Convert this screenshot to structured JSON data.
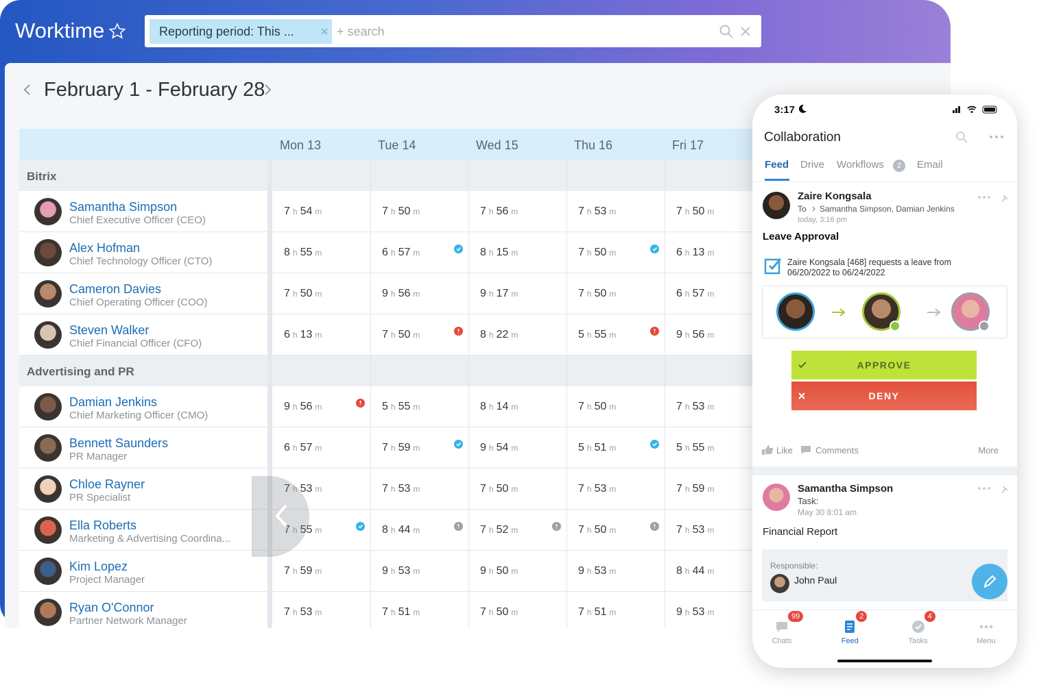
{
  "header": {
    "app_title": "Worktime",
    "filter_chip": "Reporting period: This ...",
    "search_placeholder": "+ search"
  },
  "period": "February 1 - February 28",
  "table": {
    "units": {
      "hours": "h",
      "minutes": "m"
    },
    "days": [
      "Mon 13",
      "Tue 14",
      "Wed 15",
      "Thu 16",
      "Fri 17"
    ],
    "groups": [
      {
        "name": "Bitrix",
        "employees": [
          {
            "name": "Samantha Simpson",
            "position": "Chief Executive Officer (CEO)",
            "times": [
              {
                "h": 7,
                "m": 54
              },
              {
                "h": 7,
                "m": 50
              },
              {
                "h": 7,
                "m": 56
              },
              {
                "h": 7,
                "m": 53
              },
              {
                "h": 7,
                "m": 50
              }
            ]
          },
          {
            "name": "Alex Hofman",
            "position": "Chief Technology Officer (CTO)",
            "times": [
              {
                "h": 8,
                "m": 55
              },
              {
                "h": 6,
                "m": 57,
                "status": "approved"
              },
              {
                "h": 8,
                "m": 15
              },
              {
                "h": 7,
                "m": 50,
                "status": "approved"
              },
              {
                "h": 6,
                "m": 13
              }
            ]
          },
          {
            "name": "Cameron Davies",
            "position": "Chief Operating Officer (COO)",
            "times": [
              {
                "h": 7,
                "m": 50
              },
              {
                "h": 9,
                "m": 56
              },
              {
                "h": 9,
                "m": 17
              },
              {
                "h": 7,
                "m": 50
              },
              {
                "h": 6,
                "m": 57
              }
            ]
          },
          {
            "name": "Steven Walker",
            "position": "Chief Financial Officer (CFO)",
            "times": [
              {
                "h": 6,
                "m": 13
              },
              {
                "h": 7,
                "m": 50,
                "status": "alert"
              },
              {
                "h": 8,
                "m": 22
              },
              {
                "h": 5,
                "m": 55,
                "status": "alert"
              },
              {
                "h": 9,
                "m": 56
              }
            ]
          }
        ]
      },
      {
        "name": "Advertising and PR",
        "employees": [
          {
            "name": "Damian Jenkins",
            "position": "Chief Marketing Officer (CMO)",
            "times": [
              {
                "h": 9,
                "m": 56,
                "status": "alert"
              },
              {
                "h": 5,
                "m": 55
              },
              {
                "h": 8,
                "m": 14
              },
              {
                "h": 7,
                "m": 50
              },
              {
                "h": 7,
                "m": 53
              }
            ]
          },
          {
            "name": "Bennett Saunders",
            "position": "PR Manager",
            "times": [
              {
                "h": 6,
                "m": 57
              },
              {
                "h": 7,
                "m": 59,
                "status": "approved"
              },
              {
                "h": 9,
                "m": 54
              },
              {
                "h": 5,
                "m": 51,
                "status": "approved"
              },
              {
                "h": 5,
                "m": 55
              }
            ]
          },
          {
            "name": "Chloe Rayner",
            "position": "PR Specialist",
            "times": [
              {
                "h": 7,
                "m": 53
              },
              {
                "h": 7,
                "m": 53
              },
              {
                "h": 7,
                "m": 50
              },
              {
                "h": 7,
                "m": 53
              },
              {
                "h": 7,
                "m": 59
              }
            ]
          },
          {
            "name": "Ella Roberts",
            "position": "Marketing & Advertising Coordina...",
            "times": [
              {
                "h": 7,
                "m": 55,
                "status": "approved"
              },
              {
                "h": 8,
                "m": 44,
                "status": "info"
              },
              {
                "h": 7,
                "m": 52,
                "status": "info"
              },
              {
                "h": 7,
                "m": 50,
                "status": "info"
              },
              {
                "h": 7,
                "m": 53
              }
            ]
          },
          {
            "name": "Kim Lopez",
            "position": "Project Manager",
            "times": [
              {
                "h": 7,
                "m": 59
              },
              {
                "h": 9,
                "m": 53
              },
              {
                "h": 9,
                "m": 50
              },
              {
                "h": 9,
                "m": 53
              },
              {
                "h": 8,
                "m": 44
              }
            ]
          },
          {
            "name": "Ryan O'Connor",
            "position": "Partner Network Manager",
            "times": [
              {
                "h": 7,
                "m": 53
              },
              {
                "h": 7,
                "m": 51
              },
              {
                "h": 7,
                "m": 50
              },
              {
                "h": 7,
                "m": 51
              },
              {
                "h": 9,
                "m": 53
              }
            ]
          }
        ]
      }
    ]
  },
  "mobile": {
    "status_time": "3:17",
    "title": "Collaboration",
    "tabs": [
      {
        "label": "Feed"
      },
      {
        "label": "Drive"
      },
      {
        "label": "Workflows",
        "badge": 2
      },
      {
        "label": "Email"
      }
    ],
    "posts": [
      {
        "author": "Zaire Kongsala",
        "to_label": "To",
        "recipients": "Samantha Simpson, Damian Jenkins",
        "time": "today, 3:16 pm",
        "title": "Leave Approval",
        "request": "Zaire Kongsala [468] requests a leave from 06/20/2022 to 06/24/2022",
        "approve": "APPROVE",
        "deny": "DENY",
        "actions": {
          "like": "Like",
          "comments": "Comments",
          "more": "More"
        }
      },
      {
        "author": "Samantha Simpson",
        "subtitle": "Task:",
        "time": "May 30 8:01 am",
        "title": "Financial Report",
        "responsible_label": "Responsible:",
        "responsible": "John Paul"
      }
    ],
    "nav": [
      {
        "label": "Chats",
        "badge": 99
      },
      {
        "label": "Feed",
        "badge": 2
      },
      {
        "label": "Tasks",
        "badge": 4
      },
      {
        "label": "Menu"
      }
    ]
  }
}
